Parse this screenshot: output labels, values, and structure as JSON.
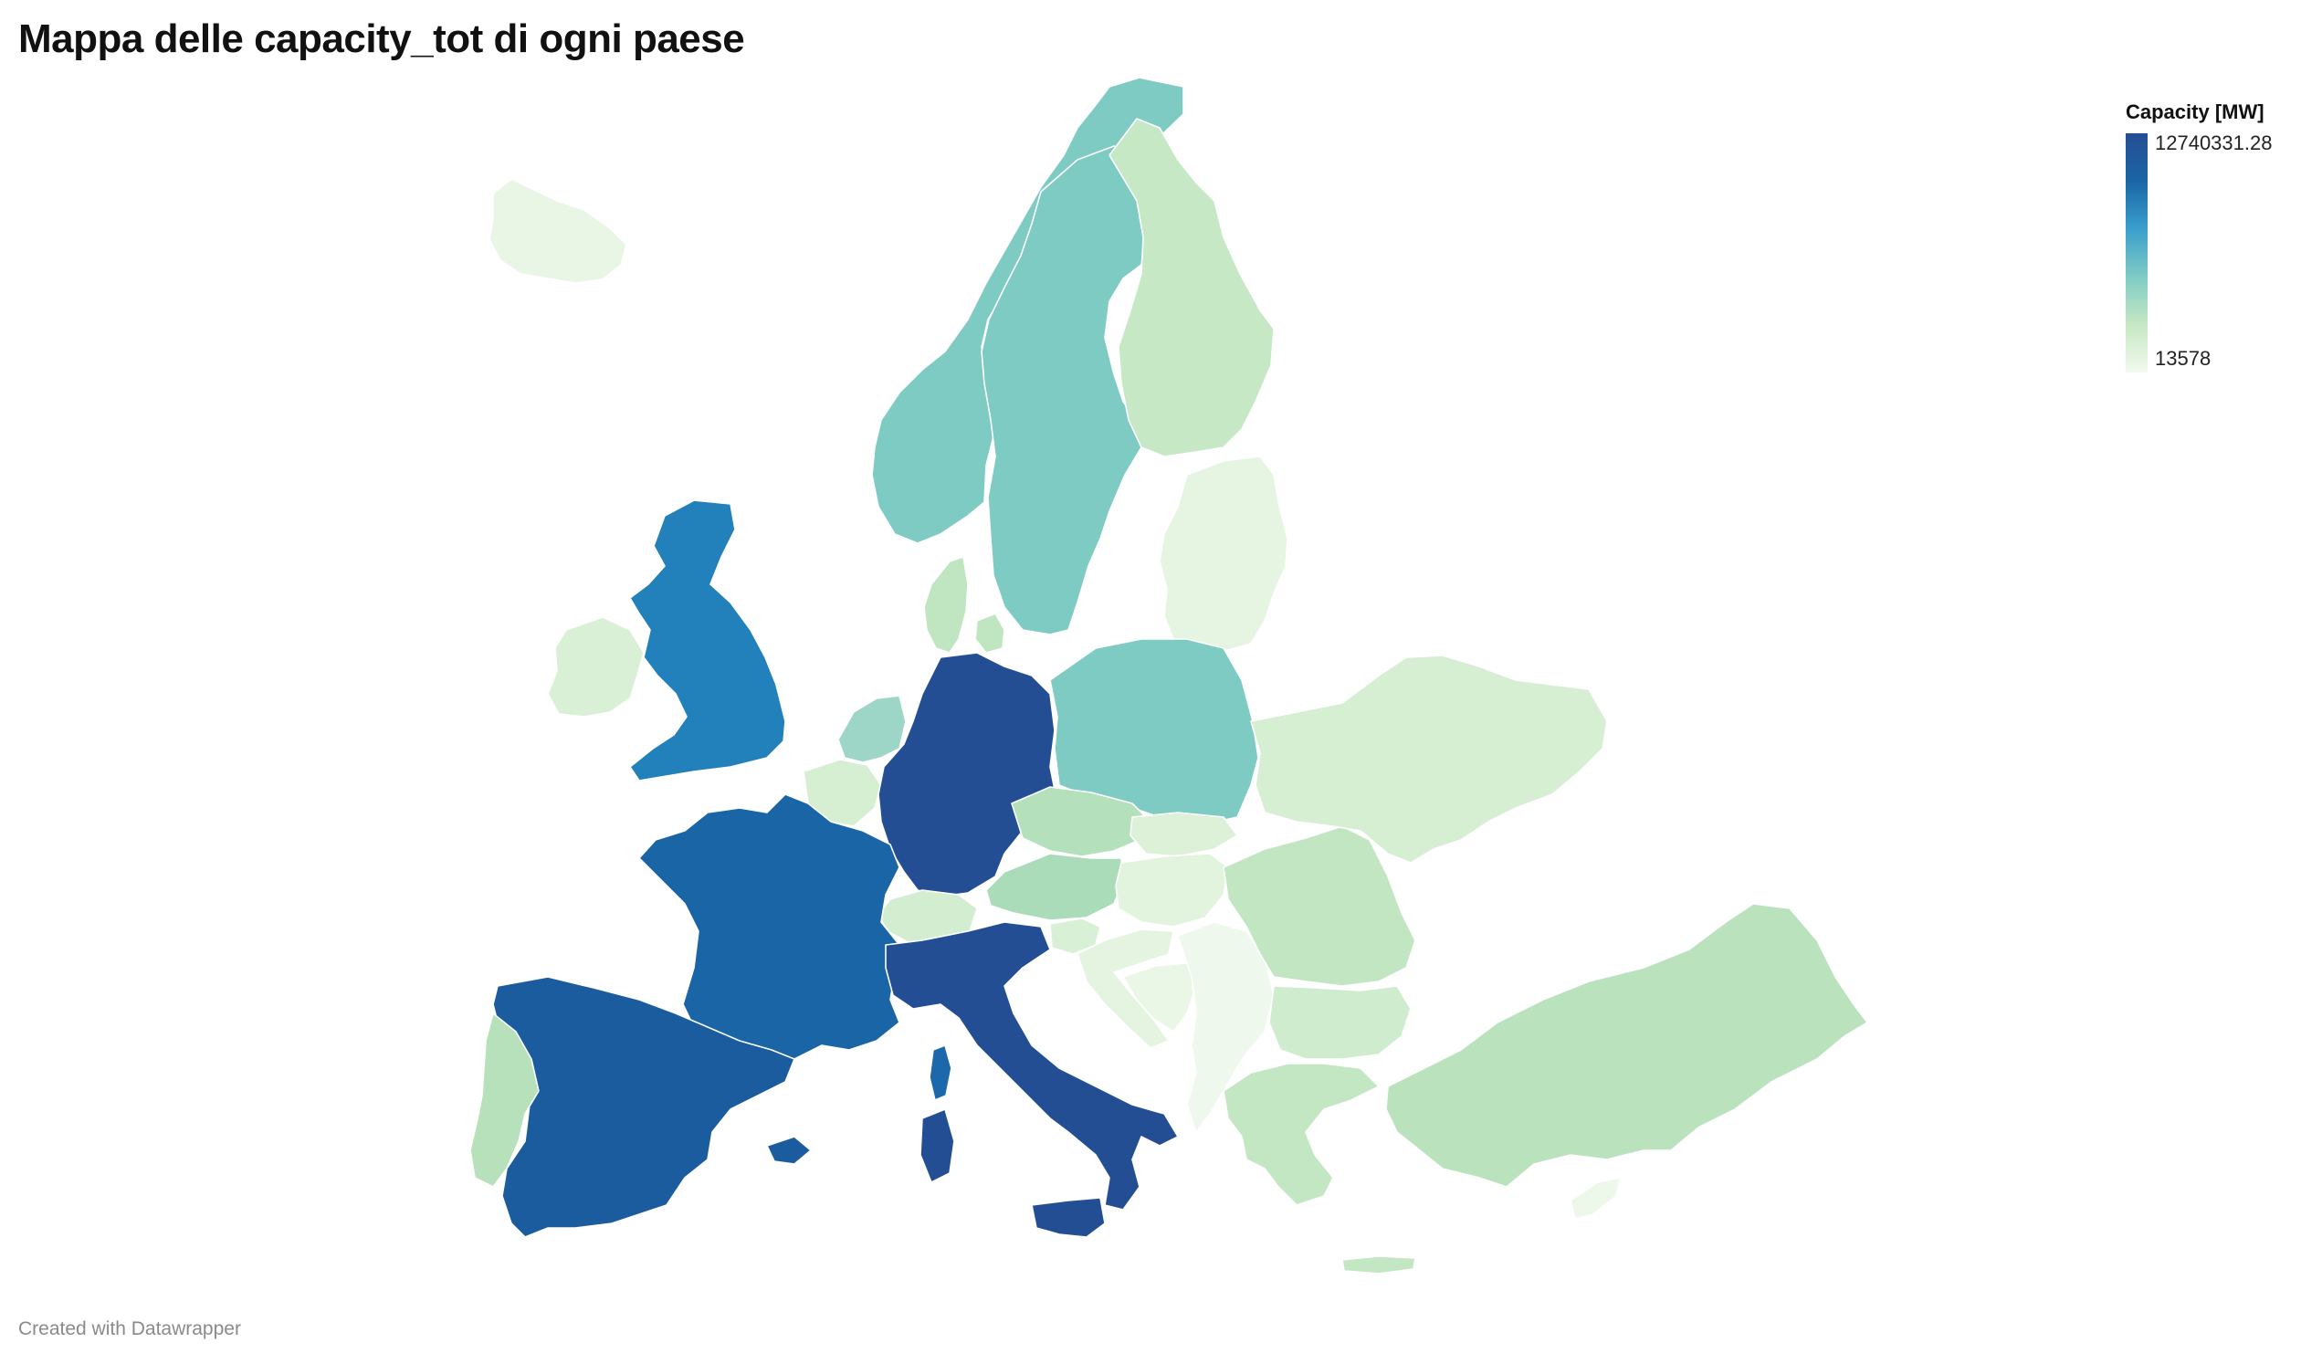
{
  "title": "Mappa delle capacity_tot di ogni paese",
  "legend": {
    "title": "Capacity [MW]",
    "max_label": "12740331.28",
    "min_label": "13578",
    "max_value": 12740331.28,
    "min_value": 13578,
    "gradient_colors": [
      "#f2f9ee",
      "#c6e8c4",
      "#7ecbc4",
      "#3a9fcc",
      "#1a65a6",
      "#244e93"
    ]
  },
  "footer": "Created with Datawrapper",
  "countries": {
    "germany": {
      "color": "#244e93"
    },
    "italy": {
      "color": "#244e93"
    },
    "spain": {
      "color": "#1b5c9f"
    },
    "france": {
      "color": "#1a65a6"
    },
    "uk": {
      "color": "#2280ba"
    },
    "corsica": {
      "color": "#1b69aa"
    },
    "poland": {
      "color": "#7ecbc4"
    },
    "norway": {
      "color": "#7ecbc4"
    },
    "sweden": {
      "color": "#7ecbc4"
    },
    "netherlands": {
      "color": "#9dd6c7"
    },
    "finland": {
      "color": "#c6e8c4"
    },
    "portugal": {
      "color": "#b7e1bb"
    },
    "denmark": {
      "color": "#bfe5c1"
    },
    "czechia": {
      "color": "#b4e0bc"
    },
    "austria": {
      "color": "#abdcba"
    },
    "belgium": {
      "color": "#d6efd3"
    },
    "switzerland": {
      "color": "#d2edd0"
    },
    "ireland": {
      "color": "#daf0d6"
    },
    "romania": {
      "color": "#c2e6c2"
    },
    "bulgaria": {
      "color": "#cfecce"
    },
    "greece": {
      "color": "#c4e7c3"
    },
    "turkey": {
      "color": "#b9e2bd"
    },
    "ukraine": {
      "color": "#d6efd3"
    },
    "hungary": {
      "color": "#e2f3de"
    },
    "slovakia": {
      "color": "#dcf1d8"
    },
    "slovenia": {
      "color": "#d8f0d5"
    },
    "croatia": {
      "color": "#e4f4e1"
    },
    "bosnia": {
      "color": "#eaf7e6"
    },
    "serbia": {
      "color": "#eff8ec"
    },
    "baltics": {
      "color": "#e5f5e1"
    },
    "iceland": {
      "color": "#e9f6e5"
    },
    "cyprus": {
      "color": "#eef8ea"
    }
  }
}
